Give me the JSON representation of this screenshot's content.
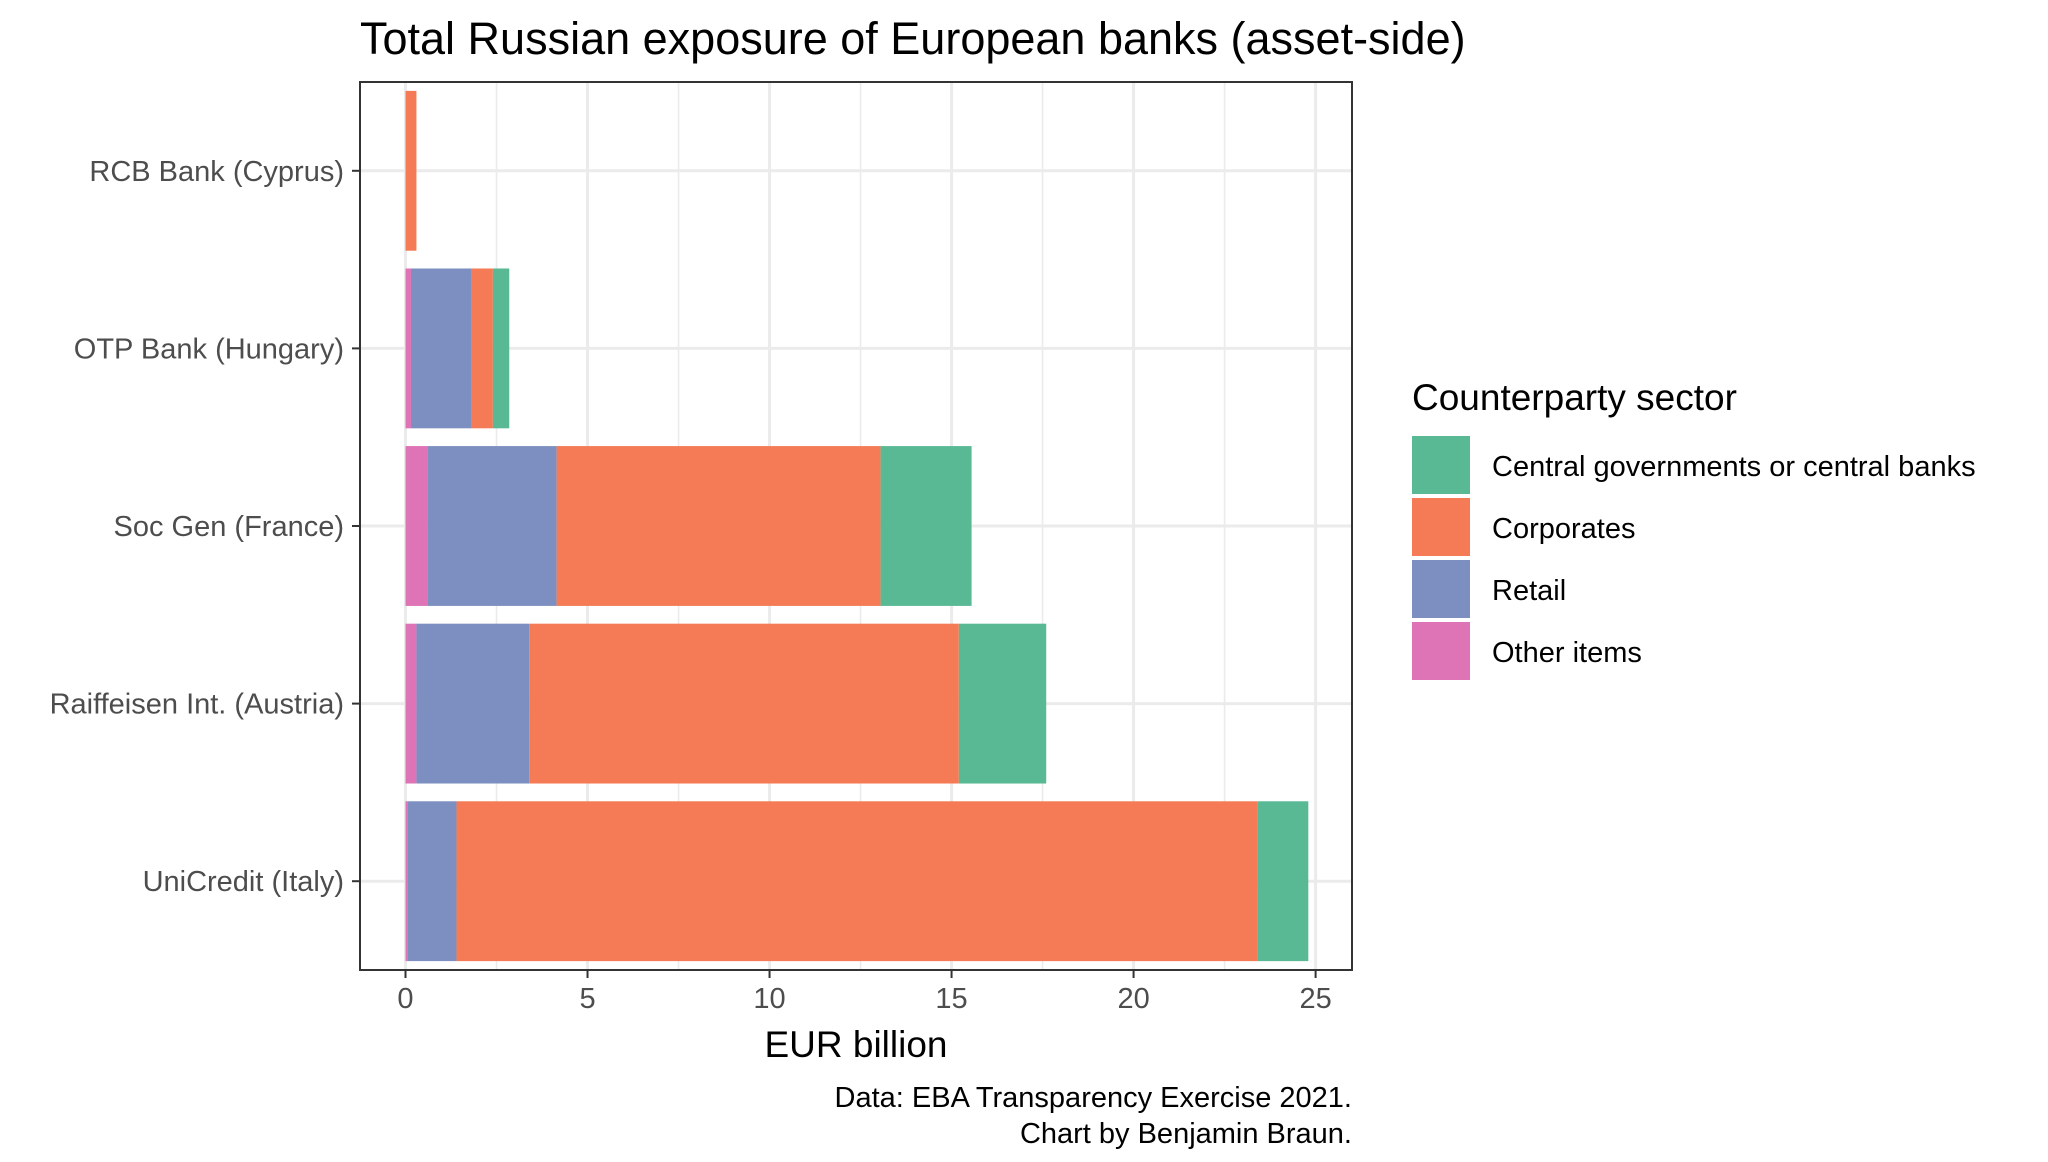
{
  "chart_data": {
    "type": "bar",
    "orientation": "horizontal",
    "stacked": true,
    "title": "Total Russian exposure of European banks (asset-side)",
    "xlabel": "EUR billion",
    "ylabel": "",
    "xlim": [
      -1.25,
      26
    ],
    "xticks": [
      0,
      5,
      10,
      15,
      20,
      25
    ],
    "grid": true,
    "categories": [
      "UniCredit (Italy)",
      "Raiffeisen Int. (Austria)",
      "Soc Gen (France)",
      "OTP Bank (Hungary)",
      "RCB Bank (Cyprus)"
    ],
    "stack_order": [
      "Other items",
      "Retail",
      "Corporates",
      "Central governments or central banks"
    ],
    "series": [
      {
        "name": "Central governments or central banks",
        "color": "#59b994",
        "values": [
          1.4,
          2.4,
          2.5,
          0.45,
          0.0
        ]
      },
      {
        "name": "Corporates",
        "color": "#f47b55",
        "values": [
          22.0,
          11.8,
          8.9,
          0.6,
          0.3
        ]
      },
      {
        "name": "Retail",
        "color": "#7d8fc0",
        "values": [
          1.35,
          3.1,
          3.55,
          1.65,
          0.0
        ]
      },
      {
        "name": "Other items",
        "color": "#de73b6",
        "values": [
          0.05,
          0.3,
          0.6,
          0.15,
          0.0
        ]
      }
    ],
    "legend": {
      "title": "Counterparty sector",
      "position": "right",
      "items": [
        "Central governments or central banks",
        "Corporates",
        "Retail",
        "Other items"
      ]
    },
    "caption": [
      "Data: EBA Transparency Exercise 2021.",
      "Chart by Benjamin Braun."
    ]
  }
}
